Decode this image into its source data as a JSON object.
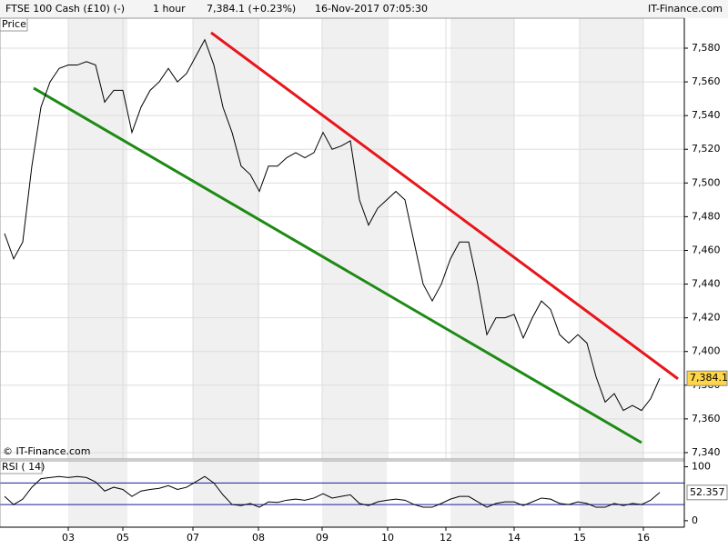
{
  "header": {
    "instrument": "FTSE 100 Cash (£10) (-)",
    "interval": "1 hour",
    "quote": "7,384.1 (+0.23%)",
    "datetime": "16-Nov-2017 07:05:30",
    "brand": "IT-Finance.com"
  },
  "chart_data": [
    {
      "type": "line",
      "panel_label": "Price",
      "watermark": "© IT-Finance.com",
      "x": [
        0,
        1,
        2,
        3,
        4,
        5,
        6,
        7,
        8,
        9,
        10,
        11,
        12,
        13,
        14,
        15,
        16,
        17,
        18,
        19,
        20,
        21,
        22,
        23,
        24,
        25,
        26,
        27,
        28,
        29,
        30,
        31,
        32,
        33,
        34,
        35,
        36,
        37,
        38,
        39,
        40,
        41,
        42,
        43,
        44,
        45,
        46,
        47,
        48,
        49,
        50,
        51,
        52,
        53,
        54,
        55,
        56,
        57,
        58,
        59,
        60,
        61,
        62,
        63,
        64,
        65,
        66,
        67,
        68,
        69,
        70,
        71,
        72
      ],
      "series": [
        {
          "name": "Price",
          "color": "#000000",
          "values": [
            7470,
            7455,
            7465,
            7510,
            7545,
            7560,
            7568,
            7570,
            7570,
            7572,
            7570,
            7548,
            7555,
            7555,
            7530,
            7545,
            7555,
            7560,
            7568,
            7560,
            7565,
            7575,
            7585,
            7570,
            7545,
            7530,
            7510,
            7505,
            7495,
            7510,
            7510,
            7515,
            7518,
            7515,
            7518,
            7530,
            7520,
            7522,
            7525,
            7490,
            7475,
            7485,
            7490,
            7495,
            7490,
            7465,
            7440,
            7430,
            7440,
            7455,
            7465,
            7465,
            7440,
            7410,
            7420,
            7420,
            7422,
            7408,
            7420,
            7430,
            7425,
            7410,
            7405,
            7410,
            7405,
            7385,
            7370,
            7375,
            7365,
            7368,
            7365,
            7372,
            7384.1
          ]
        }
      ],
      "last_label": {
        "value": 7384.1,
        "label": "7,384.1"
      },
      "trendlines": [
        {
          "color": "#e8151b",
          "x": [
            22.7,
            74.0
          ],
          "y": [
            7589.2,
            7383.8
          ]
        },
        {
          "color": "#1e8a14",
          "x": [
            3.2,
            70.0
          ],
          "y": [
            7556.3,
            7345.9
          ]
        }
      ],
      "xlim": [
        -0.5,
        74.7
      ],
      "xticks": [
        {
          "value": 7.0,
          "label": "03"
        },
        {
          "value": 13.0,
          "label": "05"
        },
        {
          "value": 20.7,
          "label": "07"
        },
        {
          "value": 27.9,
          "label": "08"
        },
        {
          "value": 34.9,
          "label": "09"
        },
        {
          "value": 42.1,
          "label": "10"
        },
        {
          "value": 48.5,
          "label": "12"
        },
        {
          "value": 56.0,
          "label": "14"
        },
        {
          "value": 63.2,
          "label": "15"
        },
        {
          "value": 70.2,
          "label": "16"
        }
      ],
      "ylim": [
        7336.2,
        7597.8
      ],
      "yticks": [
        {
          "value": 7340,
          "label": "7,340"
        },
        {
          "value": 7360,
          "label": "7,360"
        },
        {
          "value": 7380,
          "label": "7,380"
        },
        {
          "value": 7400,
          "label": "7,400"
        },
        {
          "value": 7420,
          "label": "7,420"
        },
        {
          "value": 7440,
          "label": "7,440"
        },
        {
          "value": 7460,
          "label": "7,460"
        },
        {
          "value": 7480,
          "label": "7,480"
        },
        {
          "value": 7500,
          "label": "7,500"
        },
        {
          "value": 7520,
          "label": "7,520"
        },
        {
          "value": 7540,
          "label": "7,540"
        },
        {
          "value": 7560,
          "label": "7,560"
        },
        {
          "value": 7580,
          "label": "7,580"
        }
      ],
      "grid": true
    },
    {
      "type": "line",
      "panel_label": "RSI ( 14)",
      "x": [
        0,
        1,
        2,
        3,
        4,
        5,
        6,
        7,
        8,
        9,
        10,
        11,
        12,
        13,
        14,
        15,
        16,
        17,
        18,
        19,
        20,
        21,
        22,
        23,
        24,
        25,
        26,
        27,
        28,
        29,
        30,
        31,
        32,
        33,
        34,
        35,
        36,
        37,
        38,
        39,
        40,
        41,
        42,
        43,
        44,
        45,
        46,
        47,
        48,
        49,
        50,
        51,
        52,
        53,
        54,
        55,
        56,
        57,
        58,
        59,
        60,
        61,
        62,
        63,
        64,
        65,
        66,
        67,
        68,
        69,
        70,
        71,
        72
      ],
      "series": [
        {
          "name": "RSI",
          "color": "#000000",
          "values": [
            45,
            30,
            40,
            62,
            78,
            80,
            82,
            80,
            82,
            80,
            72,
            55,
            62,
            58,
            45,
            55,
            58,
            60,
            65,
            58,
            62,
            72,
            82,
            70,
            48,
            30,
            28,
            32,
            25,
            35,
            34,
            38,
            40,
            38,
            42,
            50,
            42,
            45,
            48,
            32,
            28,
            35,
            38,
            40,
            38,
            30,
            25,
            25,
            32,
            40,
            45,
            45,
            35,
            25,
            32,
            35,
            35,
            28,
            35,
            42,
            40,
            32,
            30,
            35,
            32,
            25,
            25,
            32,
            28,
            32,
            30,
            38,
            52.357
          ]
        }
      ],
      "last_label": 52.357,
      "levels": [
        30,
        70
      ],
      "xlim": [
        -0.5,
        74.7
      ],
      "ylim": [
        -12,
        111
      ],
      "yticks": [
        0,
        100
      ]
    }
  ]
}
